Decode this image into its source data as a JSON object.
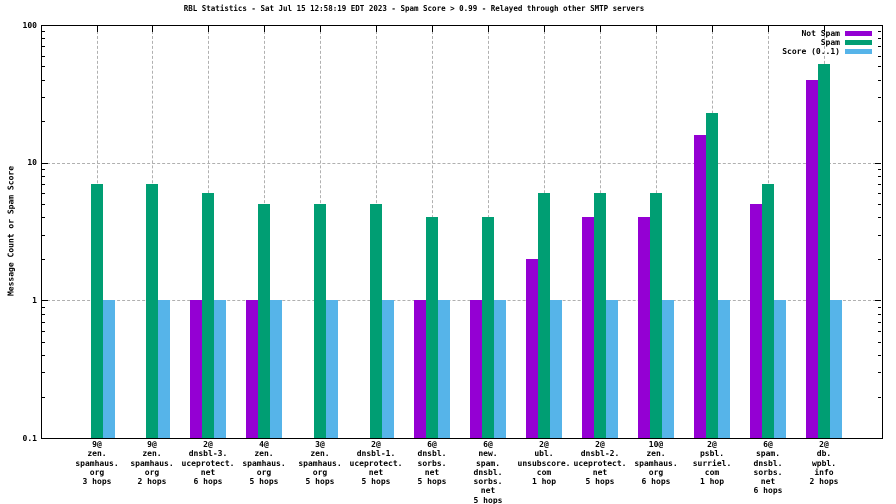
{
  "chart_data": {
    "type": "bar",
    "title": "RBL Statistics - Sat Jul 15 12:58:19 EDT 2023 - Spam Score > 0.99 - Relayed through other SMTP servers",
    "ylabel": "Message Count or Spam Score",
    "xlabel": "",
    "yscale": "log",
    "ylim": [
      0.1,
      100
    ],
    "ytick_labels": [
      "100",
      "10",
      "1",
      "0.1"
    ],
    "grid": true,
    "legend_position": "top-right-inside",
    "categories": [
      [
        "9@",
        "zen.",
        "spamhaus.",
        "org",
        "3 hops"
      ],
      [
        "9@",
        "zen.",
        "spamhaus.",
        "org",
        "2 hops"
      ],
      [
        "2@",
        "dnsbl-3.",
        "uceprotect.",
        "net",
        "6 hops"
      ],
      [
        "4@",
        "zen.",
        "spamhaus.",
        "org",
        "5 hops"
      ],
      [
        "3@",
        "zen.",
        "spamhaus.",
        "org",
        "5 hops"
      ],
      [
        "2@",
        "dnsbl-1.",
        "uceprotect.",
        "net",
        "5 hops"
      ],
      [
        "6@",
        "dnsbl.",
        "sorbs.",
        "net",
        "5 hops"
      ],
      [
        "6@",
        "new.",
        "spam.",
        "dnsbl.",
        "sorbs.",
        "net",
        "5 hops"
      ],
      [
        "2@",
        "ubl.",
        "unsubscore.",
        "com",
        "1 hop"
      ],
      [
        "2@",
        "dnsbl-2.",
        "uceprotect.",
        "net",
        "5 hops"
      ],
      [
        "10@",
        "zen.",
        "spamhaus.",
        "org",
        "6 hops"
      ],
      [
        "2@",
        "psbl.",
        "surriel.",
        "com",
        "1 hop"
      ],
      [
        "6@",
        "spam.",
        "dnsbl.",
        "sorbs.",
        "net",
        "6 hops"
      ],
      [
        "2@",
        "db.",
        "wpbl.",
        "info",
        "2 hops"
      ]
    ],
    "series": [
      {
        "name": "Not Spam",
        "color": "#9400d3",
        "values": [
          0,
          0,
          1,
          1,
          0,
          0,
          1,
          1,
          2,
          4,
          4,
          16,
          5,
          40
        ]
      },
      {
        "name": "Spam",
        "color": "#009e73",
        "values": [
          7,
          7,
          6,
          5,
          5,
          5,
          4,
          4,
          6,
          6,
          6,
          23,
          7,
          52
        ]
      },
      {
        "name": "Score (0..1)",
        "color": "#56b4e9",
        "values": [
          1,
          1,
          1,
          1,
          1,
          1,
          1,
          1,
          1,
          1,
          1,
          1,
          1,
          1
        ]
      }
    ]
  },
  "colors": {
    "not_spam": "#9400d3",
    "spam": "#009e73",
    "score": "#56b4e9",
    "grid": "#b0b0b0",
    "frame": "#000000",
    "background": "#ffffff"
  }
}
